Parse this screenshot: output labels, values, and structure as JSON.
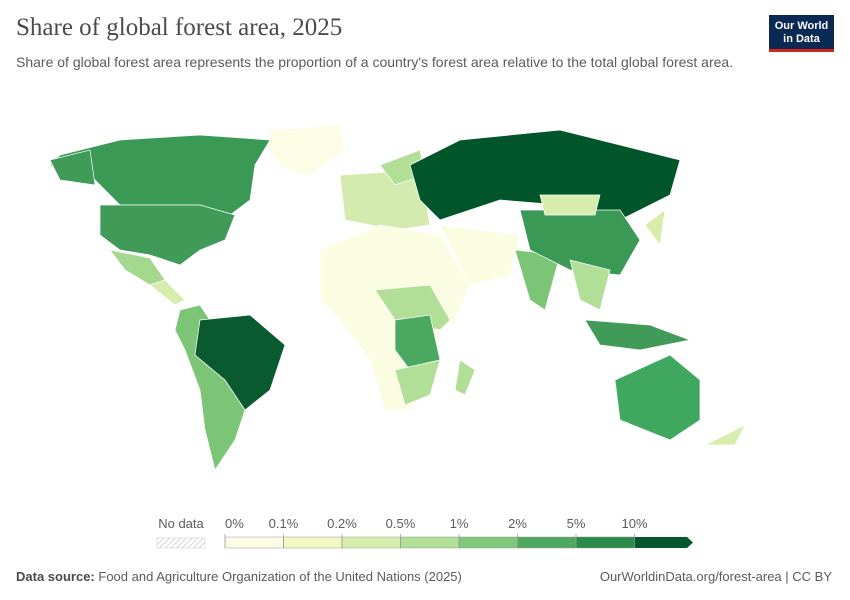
{
  "header": {
    "title": "Share of global forest area, 2025",
    "subtitle": "Share of global forest area represents the proportion of a country's forest area relative to the total global forest area.",
    "logo": [
      "Our World",
      "in Data"
    ]
  },
  "legend": {
    "no_data": "No data",
    "bins": [
      "0%",
      "0.1%",
      "0.2%",
      "0.5%",
      "1%",
      "2%",
      "5%",
      "10%"
    ],
    "colors": [
      "#fdfde6",
      "#f1f8c4",
      "#d6edae",
      "#b2df97",
      "#7fc77a",
      "#4ea960",
      "#2c8a4a",
      "#04582c"
    ]
  },
  "footer": {
    "source_label": "Data source:",
    "source": "Food and Agriculture Organization of the United Nations (2025)",
    "url": "OurWorldinData.org/forest-area | CC BY"
  }
}
